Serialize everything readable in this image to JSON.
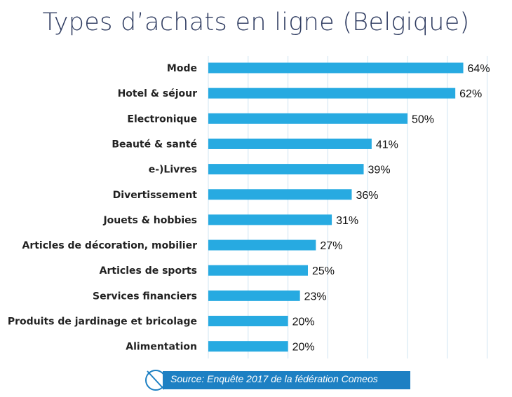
{
  "chart_data": {
    "type": "bar",
    "orientation": "horizontal",
    "title": "Types d’achats en ligne (Belgique)",
    "categories": [
      "Mode",
      "Hotel & séjour",
      "Electronique",
      "Beauté & santé",
      "e-)Livres",
      "Divertissement",
      "Jouets & hobbies",
      "Articles de décoration, mobilier",
      "Articles de sports",
      "Services financiers",
      "Produits de jardinage et bricolage",
      "Alimentation"
    ],
    "values": [
      64,
      62,
      50,
      41,
      39,
      36,
      31,
      27,
      25,
      23,
      20,
      20
    ],
    "value_labels": [
      "64%",
      "62%",
      "50%",
      "41%",
      "39%",
      "36%",
      "31%",
      "27%",
      "25%",
      "23%",
      "20%",
      "20%"
    ],
    "xlim": [
      0,
      70
    ],
    "grid": true,
    "bar_color": "#27aae1",
    "grid_color": "#cfe4f2"
  },
  "source": {
    "text": "Source: Enquête 2017 de la fédération Comeos",
    "bar_color": "#1d80c3",
    "icon": "circle-arrow-icon"
  }
}
